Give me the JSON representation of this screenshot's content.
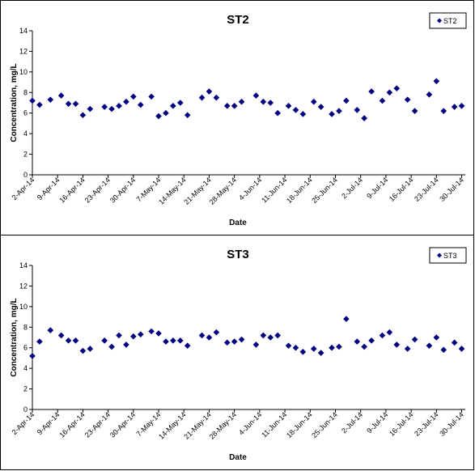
{
  "colors": {
    "marker": "#000080",
    "axis": "#000000",
    "background": "#ffffff"
  },
  "chart_data": [
    {
      "type": "scatter",
      "title": "ST2",
      "xlabel": "Date",
      "ylabel": "Concentration, mg/L",
      "ylim": [
        0,
        14
      ],
      "yticks": [
        "0",
        "2",
        "4",
        "6",
        "8",
        "10",
        "12",
        "14"
      ],
      "xlim": [
        "2014-04-02",
        "2014-07-31"
      ],
      "xtick_labels": [
        "2-Apr-14",
        "9-Apr-14",
        "16-Apr-14",
        "23-Apr-14",
        "30-Apr-14",
        "7-May-14",
        "14-May-14",
        "21-May-14",
        "28-May-14",
        "4-Jun-14",
        "11-Jun-14",
        "18-Jun-14",
        "25-Jun-14",
        "2-Jul-14",
        "9-Jul-14",
        "16-Jul-14",
        "23-Jul-14",
        "30-Jul-14"
      ],
      "grid": false,
      "legend_position": "top-right",
      "series": [
        {
          "name": "ST2",
          "x": [
            "2014-04-02",
            "2014-04-04",
            "2014-04-07",
            "2014-04-10",
            "2014-04-12",
            "2014-04-14",
            "2014-04-16",
            "2014-04-18",
            "2014-04-22",
            "2014-04-24",
            "2014-04-26",
            "2014-04-28",
            "2014-04-30",
            "2014-05-02",
            "2014-05-05",
            "2014-05-07",
            "2014-05-09",
            "2014-05-11",
            "2014-05-13",
            "2014-05-15",
            "2014-05-19",
            "2014-05-21",
            "2014-05-23",
            "2014-05-26",
            "2014-05-28",
            "2014-05-30",
            "2014-06-03",
            "2014-06-05",
            "2014-06-07",
            "2014-06-09",
            "2014-06-12",
            "2014-06-14",
            "2014-06-16",
            "2014-06-19",
            "2014-06-21",
            "2014-06-24",
            "2014-06-26",
            "2014-06-28",
            "2014-07-01",
            "2014-07-03",
            "2014-07-05",
            "2014-07-08",
            "2014-07-10",
            "2014-07-12",
            "2014-07-15",
            "2014-07-17",
            "2014-07-21",
            "2014-07-23",
            "2014-07-25",
            "2014-07-28",
            "2014-07-30"
          ],
          "values": [
            7.2,
            6.8,
            7.3,
            7.7,
            6.9,
            6.9,
            5.8,
            6.4,
            6.6,
            6.4,
            6.7,
            7.1,
            7.6,
            6.8,
            7.6,
            5.7,
            6.0,
            6.7,
            7.0,
            5.8,
            7.5,
            8.1,
            7.5,
            6.7,
            6.7,
            7.1,
            7.7,
            7.1,
            7.0,
            6.0,
            6.7,
            6.3,
            5.9,
            7.1,
            6.6,
            5.9,
            6.2,
            7.2,
            6.3,
            5.5,
            8.1,
            7.2,
            8.0,
            8.4,
            7.3,
            6.2,
            7.8,
            9.1,
            6.2,
            6.6,
            6.7
          ]
        }
      ]
    },
    {
      "type": "scatter",
      "title": "ST3",
      "xlabel": "Date",
      "ylabel": "Concentration, mg/L",
      "ylim": [
        0,
        14
      ],
      "yticks": [
        "0",
        "2",
        "4",
        "6",
        "8",
        "10",
        "12",
        "14"
      ],
      "xlim": [
        "2014-04-02",
        "2014-07-31"
      ],
      "xtick_labels": [
        "2-Apr-14",
        "9-Apr-14",
        "16-Apr-14",
        "23-Apr-14",
        "30-Apr-14",
        "7-May-14",
        "14-May-14",
        "21-May-14",
        "28-May-14",
        "4-Jun-14",
        "11-Jun-14",
        "18-Jun-14",
        "25-Jun-14",
        "2-Jul-14",
        "9-Jul-14",
        "16-Jul-14",
        "23-Jul-14",
        "30-Jul-14"
      ],
      "grid": false,
      "legend_position": "top-right",
      "series": [
        {
          "name": "ST3",
          "x": [
            "2014-04-02",
            "2014-04-04",
            "2014-04-07",
            "2014-04-10",
            "2014-04-12",
            "2014-04-14",
            "2014-04-16",
            "2014-04-18",
            "2014-04-22",
            "2014-04-24",
            "2014-04-26",
            "2014-04-28",
            "2014-04-30",
            "2014-05-02",
            "2014-05-05",
            "2014-05-07",
            "2014-05-09",
            "2014-05-11",
            "2014-05-13",
            "2014-05-15",
            "2014-05-19",
            "2014-05-21",
            "2014-05-23",
            "2014-05-26",
            "2014-05-28",
            "2014-05-30",
            "2014-06-03",
            "2014-06-05",
            "2014-06-07",
            "2014-06-09",
            "2014-06-12",
            "2014-06-14",
            "2014-06-16",
            "2014-06-19",
            "2014-06-21",
            "2014-06-24",
            "2014-06-26",
            "2014-06-28",
            "2014-07-01",
            "2014-07-03",
            "2014-07-05",
            "2014-07-08",
            "2014-07-10",
            "2014-07-12",
            "2014-07-15",
            "2014-07-17",
            "2014-07-21",
            "2014-07-23",
            "2014-07-25",
            "2014-07-28",
            "2014-07-30"
          ],
          "values": [
            5.2,
            6.6,
            7.7,
            7.2,
            6.7,
            6.7,
            5.7,
            5.9,
            6.7,
            6.1,
            7.2,
            6.3,
            7.1,
            7.3,
            7.6,
            7.4,
            6.6,
            6.7,
            6.7,
            6.2,
            7.2,
            7.0,
            7.5,
            6.5,
            6.6,
            6.8,
            6.3,
            7.2,
            7.0,
            7.2,
            6.2,
            6.0,
            5.6,
            5.9,
            5.5,
            6.0,
            6.1,
            8.8,
            6.6,
            6.1,
            6.7,
            7.2,
            7.5,
            6.3,
            5.9,
            6.8,
            6.2,
            7.0,
            5.8,
            6.5,
            5.9
          ]
        }
      ]
    }
  ]
}
